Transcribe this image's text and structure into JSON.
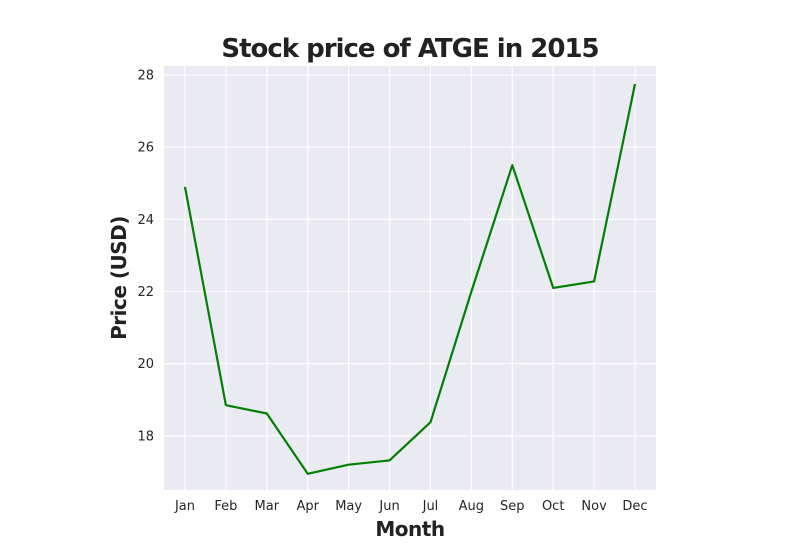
{
  "chart_data": {
    "type": "line",
    "title": "Stock price of ATGE in 2015",
    "xlabel": "Month",
    "ylabel": "Price (USD)",
    "categories": [
      "Jan",
      "Feb",
      "Mar",
      "Apr",
      "May",
      "Jun",
      "Jul",
      "Aug",
      "Sep",
      "Oct",
      "Nov",
      "Dec"
    ],
    "series": [
      {
        "color": "#008000",
        "values": [
          24.9,
          18.85,
          18.62,
          16.95,
          17.2,
          17.32,
          18.38,
          22.0,
          25.5,
          22.1,
          22.28,
          27.75
        ]
      }
    ],
    "yticks": [
      18,
      20,
      22,
      24,
      26,
      28
    ],
    "ylim": [
      16.5,
      28.25
    ],
    "grid": true,
    "background": "#eaeaf2",
    "grid_color": "#ffffff"
  }
}
